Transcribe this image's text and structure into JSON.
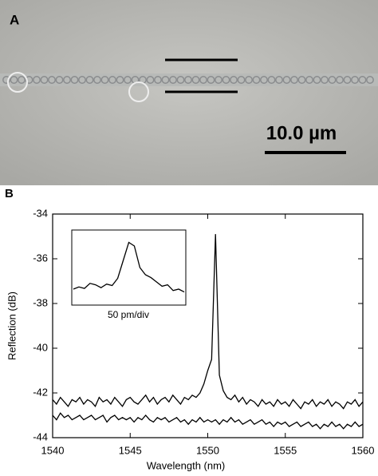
{
  "panel_a": {
    "label": "A",
    "scale_bar": "10.0 µm"
  },
  "chart_data": [
    {
      "type": "line",
      "panel_label": "B",
      "x_label": "Wavelength (nm)",
      "y_label": "Reflection (dB)",
      "x": [
        1540,
        1540.25,
        1540.5,
        1540.75,
        1541,
        1541.25,
        1541.5,
        1541.75,
        1542,
        1542.25,
        1542.5,
        1542.75,
        1543,
        1543.25,
        1543.5,
        1543.75,
        1544,
        1544.25,
        1544.5,
        1544.75,
        1545,
        1545.25,
        1545.5,
        1545.75,
        1546,
        1546.25,
        1546.5,
        1546.75,
        1547,
        1547.25,
        1547.5,
        1547.75,
        1548,
        1548.25,
        1548.5,
        1548.75,
        1549,
        1549.25,
        1549.5,
        1549.75,
        1550,
        1550.25,
        1550.5,
        1550.75,
        1551,
        1551.25,
        1551.5,
        1551.75,
        1552,
        1552.25,
        1552.5,
        1552.75,
        1553,
        1553.25,
        1553.5,
        1553.75,
        1554,
        1554.25,
        1554.5,
        1554.75,
        1555,
        1555.25,
        1555.5,
        1555.75,
        1556,
        1556.25,
        1556.5,
        1556.75,
        1557,
        1557.25,
        1557.5,
        1557.75,
        1558,
        1558.25,
        1558.5,
        1558.75,
        1559,
        1559.25,
        1559.5,
        1559.75,
        1560
      ],
      "series": [
        {
          "color": "#000000",
          "values": [
            -42.3,
            -42.5,
            -42.2,
            -42.4,
            -42.6,
            -42.3,
            -42.4,
            -42.2,
            -42.5,
            -42.3,
            -42.4,
            -42.6,
            -42.2,
            -42.4,
            -42.3,
            -42.5,
            -42.2,
            -42.4,
            -42.6,
            -42.3,
            -42.2,
            -42.4,
            -42.5,
            -42.3,
            -42.1,
            -42.4,
            -42.2,
            -42.5,
            -42.3,
            -42.2,
            -42.4,
            -42.1,
            -42.3,
            -42.5,
            -42.2,
            -42.3,
            -42.1,
            -42.2,
            -42.0,
            -41.6,
            -41.0,
            -40.5,
            -34.9,
            -41.2,
            -41.9,
            -42.2,
            -42.3,
            -42.1,
            -42.4,
            -42.2,
            -42.5,
            -42.3,
            -42.4,
            -42.6,
            -42.3,
            -42.5,
            -42.4,
            -42.6,
            -42.3,
            -42.5,
            -42.4,
            -42.6,
            -42.3,
            -42.5,
            -42.7,
            -42.4,
            -42.5,
            -42.3,
            -42.6,
            -42.4,
            -42.5,
            -42.3,
            -42.6,
            -42.4,
            -42.5,
            -42.7,
            -42.4,
            -42.5,
            -42.3,
            -42.6,
            -42.4
          ]
        },
        {
          "color": "#000000",
          "values": [
            -43.0,
            -43.2,
            -42.9,
            -43.1,
            -43.0,
            -43.2,
            -43.1,
            -43.0,
            -43.2,
            -43.1,
            -43.0,
            -43.2,
            -43.1,
            -43.0,
            -43.3,
            -43.1,
            -43.0,
            -43.2,
            -43.1,
            -43.2,
            -43.1,
            -43.3,
            -43.1,
            -43.2,
            -43.0,
            -43.2,
            -43.3,
            -43.1,
            -43.2,
            -43.1,
            -43.3,
            -43.2,
            -43.1,
            -43.3,
            -43.2,
            -43.4,
            -43.2,
            -43.3,
            -43.1,
            -43.3,
            -43.2,
            -43.3,
            -43.2,
            -43.4,
            -43.2,
            -43.3,
            -43.1,
            -43.3,
            -43.2,
            -43.4,
            -43.3,
            -43.2,
            -43.4,
            -43.3,
            -43.2,
            -43.4,
            -43.3,
            -43.5,
            -43.3,
            -43.4,
            -43.3,
            -43.5,
            -43.4,
            -43.3,
            -43.5,
            -43.4,
            -43.3,
            -43.5,
            -43.4,
            -43.6,
            -43.4,
            -43.5,
            -43.3,
            -43.5,
            -43.4,
            -43.6,
            -43.4,
            -43.5,
            -43.3,
            -43.5,
            -43.4
          ]
        }
      ],
      "xlim": [
        1540,
        1560
      ],
      "xticks": [
        1540,
        1545,
        1550,
        1555,
        1560
      ],
      "ylim": [
        -44,
        -34
      ],
      "yticks": [
        -34,
        -36,
        -38,
        -40,
        -42,
        -44
      ]
    },
    {
      "type": "line",
      "x_label": "50 pm/div",
      "x": [
        0,
        1,
        2,
        3,
        4,
        5,
        6,
        7,
        8,
        9,
        10,
        11,
        12,
        13,
        14,
        15,
        16,
        17,
        18,
        19,
        20
      ],
      "series": [
        {
          "color": "#000000",
          "values": [
            2,
            2.3,
            2.1,
            2.8,
            2.6,
            2.2,
            2.7,
            2.5,
            3.5,
            6,
            8.5,
            8,
            5,
            4,
            3.6,
            3,
            2.4,
            2.6,
            1.8,
            2,
            1.6
          ]
        }
      ],
      "xlim": [
        0,
        20
      ],
      "ylim": [
        0,
        10
      ]
    }
  ]
}
